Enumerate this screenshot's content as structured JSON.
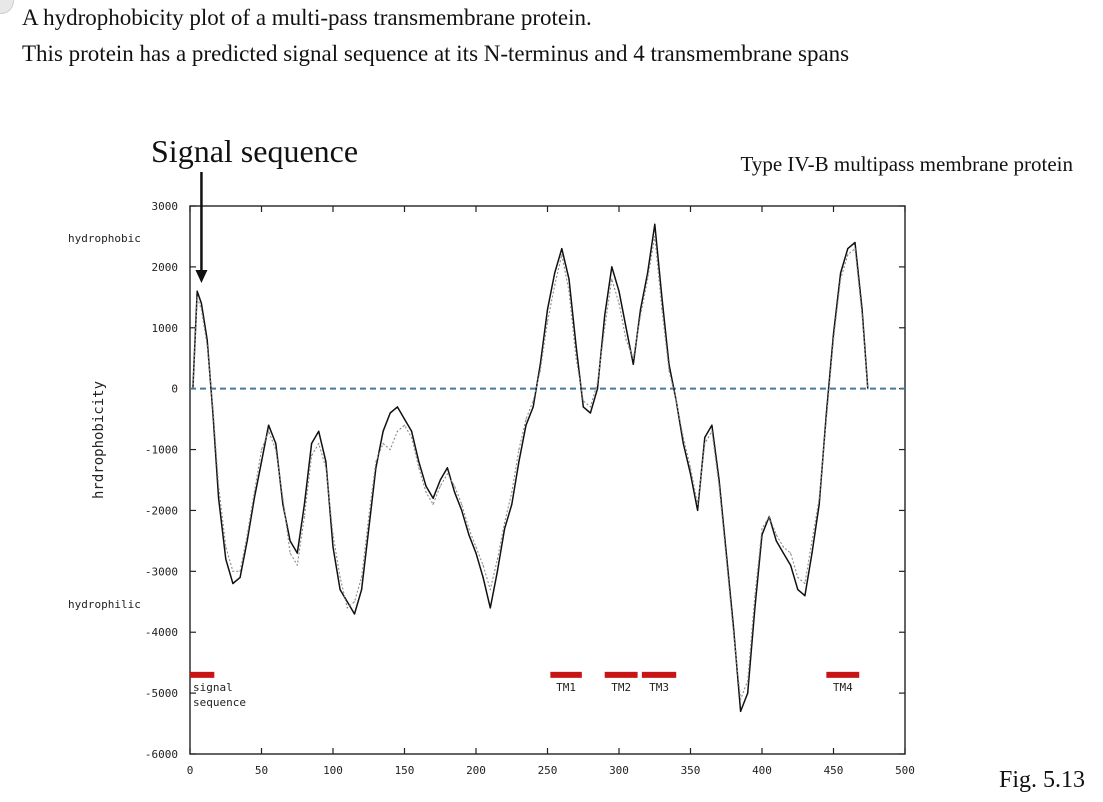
{
  "caption": {
    "line1": "A hydrophobicity plot of a multi-pass transmembrane protein.",
    "line2": "This protein has a predicted signal sequence at its N-terminus and 4 transmembrane spans"
  },
  "annotation": {
    "signal_sequence": "Signal sequence"
  },
  "figure_label": "Fig. 5.13",
  "colors": {
    "trace": "#111111",
    "trace2": "#8a8a8a",
    "zero_line": "#4a7a9a",
    "tm_bar": "#c81414",
    "axis": "#222222"
  },
  "chart_data": {
    "type": "line",
    "title": "Type IV-B multipass membrane protein",
    "xlabel": "",
    "ylabel": "hrdrophobicity",
    "y_side_labels": {
      "hydrophobic": "hydrophobic",
      "hydrophilic": "hydrophilic"
    },
    "xlim": [
      0,
      500
    ],
    "ylim": [
      -6000,
      3000
    ],
    "x_ticks": [
      0,
      50,
      100,
      150,
      200,
      250,
      300,
      350,
      400,
      450,
      500
    ],
    "y_ticks": [
      3000,
      2000,
      1000,
      0,
      -1000,
      -2000,
      -3000,
      -4000,
      -5000,
      -6000
    ],
    "zero_line": 0,
    "series": [
      {
        "values_x": [
          2,
          5,
          8,
          12,
          16,
          20,
          25,
          30,
          35,
          40,
          45,
          50,
          55,
          60,
          65,
          70,
          75,
          80,
          85,
          90,
          95,
          100,
          105,
          110,
          115,
          120,
          125,
          130,
          135,
          140,
          145,
          150,
          155,
          160,
          165,
          170,
          175,
          180,
          185,
          190,
          195,
          200,
          205,
          210,
          215,
          220,
          225,
          230,
          235,
          240,
          245,
          250,
          255,
          260,
          265,
          270,
          275,
          280,
          285,
          290,
          295,
          300,
          305,
          310,
          315,
          320,
          325,
          330,
          335,
          340,
          345,
          350,
          355,
          360,
          365,
          370,
          375,
          380,
          385,
          390,
          395,
          400,
          405,
          410,
          415,
          420,
          425,
          430,
          435,
          440,
          445,
          450,
          455,
          460,
          465,
          470,
          474
        ],
        "values_y": [
          0,
          1600,
          1400,
          800,
          -400,
          -1800,
          -2800,
          -3200,
          -3100,
          -2500,
          -1800,
          -1200,
          -600,
          -900,
          -1900,
          -2500,
          -2700,
          -1900,
          -900,
          -700,
          -1200,
          -2600,
          -3300,
          -3500,
          -3700,
          -3300,
          -2300,
          -1300,
          -700,
          -400,
          -300,
          -500,
          -700,
          -1200,
          -1600,
          -1800,
          -1500,
          -1300,
          -1700,
          -2000,
          -2400,
          -2700,
          -3100,
          -3600,
          -3000,
          -2300,
          -1900,
          -1200,
          -600,
          -300,
          400,
          1300,
          1900,
          2300,
          1800,
          700,
          -300,
          -400,
          0,
          1200,
          2000,
          1600,
          1000,
          400,
          1300,
          1900,
          2700,
          1500,
          400,
          -200,
          -900,
          -1400,
          -2000,
          -800,
          -600,
          -1500,
          -2700,
          -3900,
          -5300,
          -5000,
          -3600,
          -2400,
          -2100,
          -2500,
          -2700,
          -2900,
          -3300,
          -3400,
          -2700,
          -1900,
          -400,
          900,
          1900,
          2300,
          2400,
          1300,
          0
        ]
      },
      {
        "values_x": [
          2,
          5,
          8,
          12,
          16,
          20,
          25,
          30,
          35,
          40,
          45,
          50,
          55,
          60,
          65,
          70,
          75,
          80,
          85,
          90,
          95,
          100,
          105,
          110,
          115,
          120,
          125,
          130,
          135,
          140,
          145,
          150,
          155,
          160,
          165,
          170,
          175,
          180,
          185,
          190,
          195,
          200,
          205,
          210,
          215,
          220,
          225,
          230,
          235,
          240,
          245,
          250,
          255,
          260,
          265,
          270,
          275,
          280,
          285,
          290,
          295,
          300,
          305,
          310,
          315,
          320,
          325,
          330,
          335,
          340,
          345,
          350,
          355,
          360,
          365,
          370,
          375,
          380,
          385,
          390,
          395,
          400,
          405,
          410,
          415,
          420,
          425,
          430,
          435,
          440,
          445,
          450,
          455,
          460,
          465,
          470,
          474
        ],
        "values_y": [
          0,
          1500,
          1300,
          700,
          -300,
          -1600,
          -2600,
          -3000,
          -3000,
          -2400,
          -1700,
          -1000,
          -700,
          -1000,
          -1800,
          -2700,
          -2900,
          -2100,
          -1100,
          -900,
          -1300,
          -2400,
          -3100,
          -3600,
          -3500,
          -3100,
          -2100,
          -1200,
          -900,
          -1000,
          -700,
          -600,
          -800,
          -1300,
          -1700,
          -1900,
          -1600,
          -1400,
          -1600,
          -1900,
          -2300,
          -2600,
          -2900,
          -3300,
          -2800,
          -2200,
          -1700,
          -1000,
          -500,
          -200,
          300,
          1100,
          1700,
          2200,
          1600,
          500,
          -200,
          -300,
          100,
          1000,
          1800,
          1400,
          800,
          500,
          1200,
          1800,
          2500,
          1300,
          300,
          -200,
          -800,
          -1300,
          -1900,
          -900,
          -700,
          -1600,
          -2800,
          -4000,
          -5100,
          -4800,
          -3400,
          -2300,
          -2100,
          -2400,
          -2600,
          -2700,
          -3100,
          -3200,
          -2500,
          -1800,
          -500,
          800,
          1800,
          2200,
          2300,
          1200,
          0
        ]
      }
    ],
    "features": [
      {
        "name": "signal sequence",
        "label_lines": [
          "signal",
          "sequence"
        ],
        "start": 0,
        "end": 17
      },
      {
        "name": "TM1",
        "label_lines": [
          "TM1"
        ],
        "start": 252,
        "end": 274
      },
      {
        "name": "TM2",
        "label_lines": [
          "TM2"
        ],
        "start": 290,
        "end": 313
      },
      {
        "name": "TM3",
        "label_lines": [
          "TM3"
        ],
        "start": 316,
        "end": 340
      },
      {
        "name": "TM4",
        "label_lines": [
          "TM4"
        ],
        "start": 445,
        "end": 468
      }
    ],
    "feature_level": -4700,
    "grid": false
  }
}
